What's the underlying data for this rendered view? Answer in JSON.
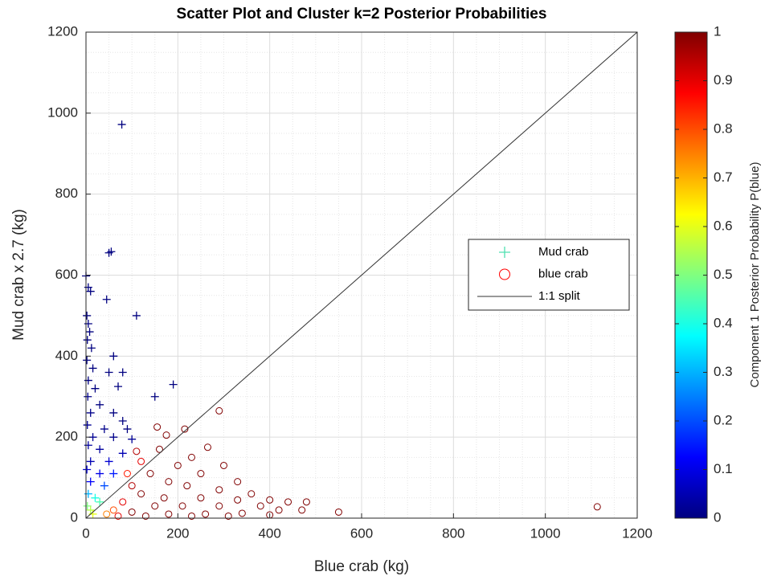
{
  "chart_data": {
    "type": "scatter",
    "title": "Scatter Plot and Cluster k=2 Posterior Probabilities",
    "xlabel": "Blue crab (kg)",
    "ylabel": "Mud crab x 2.7 (kg)",
    "xlim": [
      0,
      1200
    ],
    "ylim": [
      0,
      1200
    ],
    "xticks": [
      0,
      200,
      400,
      600,
      800,
      1000,
      1200
    ],
    "yticks": [
      0,
      200,
      400,
      600,
      800,
      1000,
      1200
    ],
    "grid": true,
    "minor_grid": true,
    "colormap": "jet",
    "colorbar": {
      "label": "Component 1 Posterior Probability P(blue)",
      "lim": [
        0,
        1
      ],
      "ticks": [
        0,
        0.1,
        0.2,
        0.3,
        0.4,
        0.5,
        0.6,
        0.7,
        0.8,
        0.9,
        1
      ]
    },
    "legend": "right",
    "series": [
      {
        "name": "Mud crab",
        "marker": "+",
        "color": "#4fe0b0",
        "x": [
          78,
          50,
          55,
          0,
          5,
          10,
          45,
          2,
          110,
          5,
          8,
          3,
          12,
          60,
          2,
          15,
          50,
          80,
          5,
          190,
          20,
          70,
          4,
          150,
          30,
          10,
          60,
          80,
          3,
          40,
          90,
          15,
          60,
          100,
          5,
          30,
          80,
          10,
          50,
          2,
          30,
          60,
          10,
          40,
          5,
          20,
          3,
          10,
          30,
          15
        ],
        "y": [
          972,
          655,
          658,
          598,
          570,
          560,
          540,
          500,
          500,
          480,
          460,
          440,
          420,
          400,
          390,
          370,
          360,
          360,
          340,
          330,
          320,
          325,
          300,
          300,
          280,
          260,
          260,
          240,
          230,
          220,
          220,
          200,
          200,
          195,
          180,
          170,
          160,
          140,
          140,
          120,
          110,
          110,
          90,
          80,
          60,
          50,
          30,
          20,
          40,
          10
        ],
        "probability": [
          0,
          0,
          0,
          0,
          0,
          0,
          0,
          0,
          0,
          0,
          0,
          0,
          0,
          0,
          0,
          0,
          0,
          0,
          0,
          0,
          0,
          0,
          0.01,
          0,
          0,
          0.01,
          0,
          0,
          0.02,
          0.01,
          0,
          0.02,
          0.01,
          0.02,
          0.03,
          0.03,
          0.05,
          0.05,
          0.08,
          0.08,
          0.1,
          0.15,
          0.12,
          0.2,
          0.3,
          0.4,
          0.5,
          0.55,
          0.45,
          0.6
        ]
      },
      {
        "name": "blue crab",
        "marker": "o",
        "color": "#ff0000",
        "x": [
          290,
          155,
          215,
          175,
          265,
          160,
          110,
          230,
          120,
          200,
          300,
          90,
          140,
          250,
          330,
          180,
          100,
          220,
          290,
          360,
          120,
          170,
          250,
          330,
          400,
          440,
          480,
          80,
          150,
          210,
          290,
          380,
          420,
          470,
          550,
          1113,
          60,
          100,
          180,
          260,
          340,
          45,
          130,
          230,
          310,
          400,
          70
        ],
        "y": [
          265,
          225,
          220,
          205,
          175,
          170,
          165,
          150,
          140,
          130,
          130,
          110,
          110,
          110,
          90,
          90,
          80,
          80,
          70,
          60,
          60,
          50,
          50,
          45,
          45,
          40,
          40,
          40,
          30,
          30,
          30,
          30,
          20,
          20,
          15,
          28,
          20,
          15,
          10,
          10,
          12,
          10,
          5,
          5,
          5,
          8,
          5
        ],
        "probability": [
          1,
          1,
          1,
          1,
          1,
          1,
          0.95,
          1,
          0.9,
          1,
          1,
          0.85,
          1,
          1,
          1,
          1,
          0.95,
          1,
          1,
          1,
          1,
          1,
          1,
          1,
          1,
          1,
          1,
          0.9,
          1,
          1,
          1,
          1,
          1,
          1,
          1,
          1,
          0.8,
          1,
          1,
          1,
          1,
          0.75,
          1,
          1,
          1,
          1,
          0.9
        ]
      },
      {
        "name": "1:1 split",
        "marker": "line",
        "color": "#333333",
        "x": [
          0,
          1200
        ],
        "y": [
          0,
          1200
        ]
      }
    ]
  }
}
